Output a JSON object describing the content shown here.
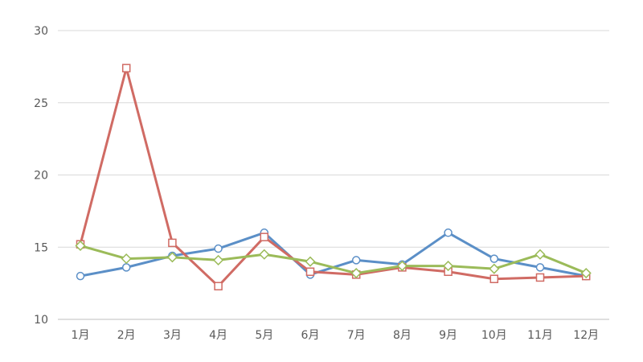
{
  "chart_data": {
    "type": "line",
    "title": "",
    "xlabel": "",
    "ylabel": "",
    "categories": [
      "1月",
      "2月",
      "3月",
      "4月",
      "5月",
      "6月",
      "7月",
      "8月",
      "9月",
      "10月",
      "11月",
      "12月"
    ],
    "ylim": [
      10,
      30
    ],
    "yticks": [
      10,
      15,
      20,
      25,
      30
    ],
    "grid": true,
    "legend": "none",
    "series": [
      {
        "color": "#5b8fc7",
        "marker": "circle",
        "values": [
          13.0,
          13.6,
          14.4,
          14.9,
          16.0,
          13.1,
          14.1,
          13.8,
          16.0,
          14.2,
          13.6,
          13.0
        ]
      },
      {
        "color": "#d06b64",
        "marker": "square",
        "values": [
          15.2,
          27.4,
          15.3,
          12.3,
          15.7,
          13.3,
          13.1,
          13.6,
          13.3,
          12.8,
          12.9,
          13.0
        ]
      },
      {
        "color": "#9bbb59",
        "marker": "diamond",
        "values": [
          15.1,
          14.2,
          14.3,
          14.1,
          14.5,
          14.0,
          13.2,
          13.7,
          13.7,
          13.5,
          14.5,
          13.2
        ]
      }
    ]
  }
}
